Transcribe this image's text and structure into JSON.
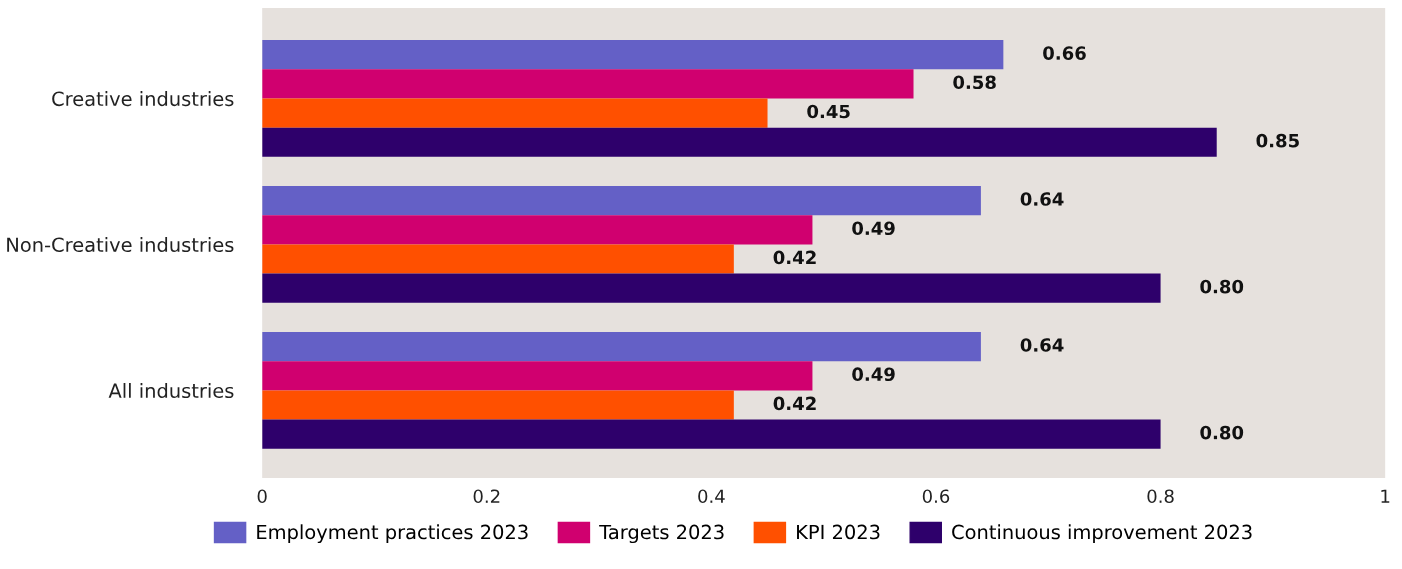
{
  "chart_data": {
    "type": "bar",
    "orientation": "horizontal",
    "categories": [
      "Creative industries",
      "Non-Creative industries",
      "All industries"
    ],
    "series": [
      {
        "name": "Employment practices 2023",
        "color": "#6460c6",
        "values": [
          0.66,
          0.64,
          0.64
        ],
        "value_labels": [
          "0.66",
          "0.64",
          "0.64"
        ]
      },
      {
        "name": "Targets 2023",
        "color": "#d0006f",
        "values": [
          0.58,
          0.49,
          0.49
        ],
        "value_labels": [
          "0.58",
          "0.49",
          "0.49"
        ]
      },
      {
        "name": "KPI 2023",
        "color": "#ff5000",
        "values": [
          0.45,
          0.42,
          0.42
        ],
        "value_labels": [
          "0.45",
          "0.42",
          "0.42"
        ]
      },
      {
        "name": "Continuous improvement 2023",
        "color": "#2e006b",
        "values": [
          0.85,
          0.8,
          0.8
        ],
        "value_labels": [
          "0.85",
          "0.80",
          "0.80"
        ]
      }
    ],
    "xlim": [
      0,
      1
    ],
    "xticks": [
      0,
      0.2,
      0.4,
      0.6,
      0.8,
      1
    ],
    "grid": false,
    "legend": "bottom"
  }
}
